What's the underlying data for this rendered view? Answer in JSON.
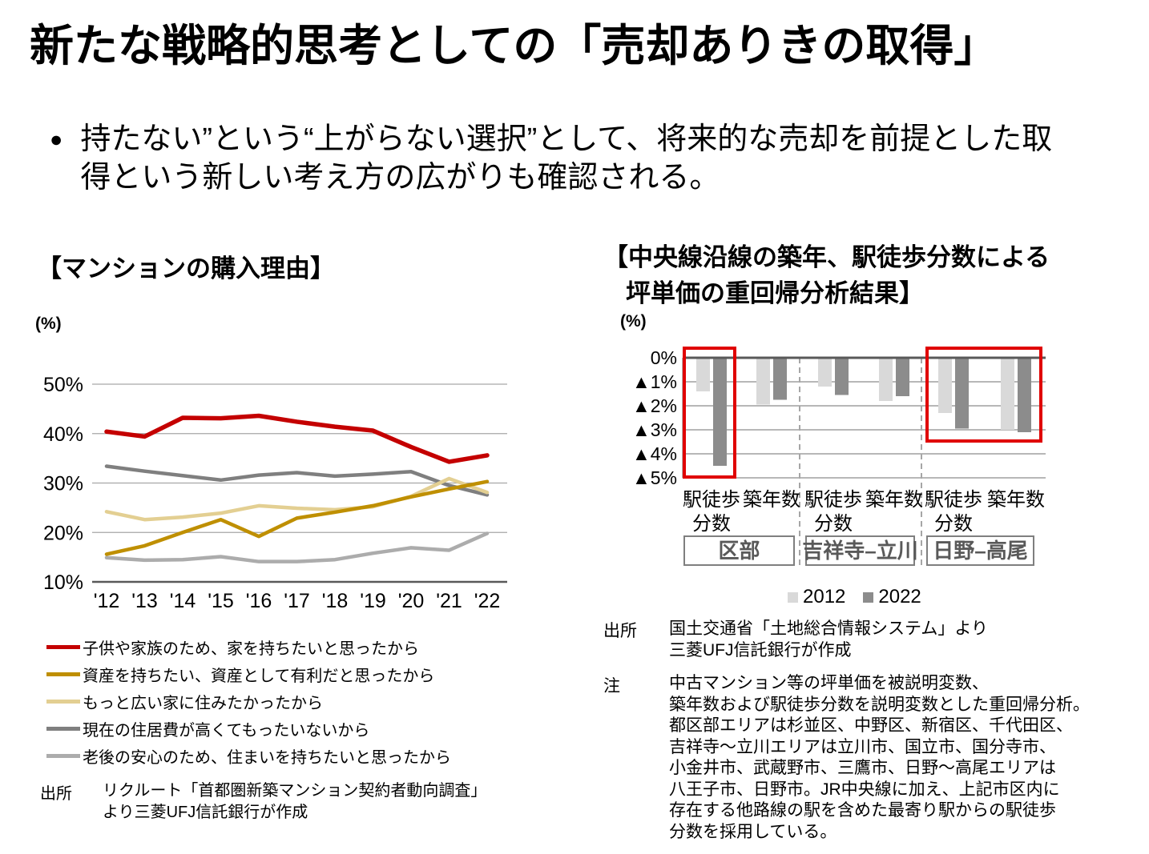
{
  "title": "新たな戦略的思考としての「売却ありきの取得」",
  "bullet_text": "持たない”という“上がらない選択”として、将来的な売却を前提とした取\n得という新しい考え方の広がりも確認される。",
  "colors": {
    "accent_red": "#c40000",
    "highlight_box_red": "#e00000",
    "axis_dark_gray": "#595959",
    "grid_gray": "#a6a6a6"
  },
  "chart_data": [
    {
      "type": "line",
      "title": "【マンションの購入理由】",
      "unit": "(%)",
      "x": [
        "'12",
        "'13",
        "'14",
        "'15",
        "'16",
        "'17",
        "'18",
        "'19",
        "'20",
        "'21",
        "'22"
      ],
      "ylim": [
        10,
        50
      ],
      "yticks": [
        "50%",
        "40%",
        "30%",
        "20%",
        "10%"
      ],
      "grid": true,
      "legend_position": "bottom-left",
      "series": [
        {
          "name": "子供や家族のため、家を持ちたいと思ったから",
          "color": "#c40000",
          "values": [
            40.4,
            39.4,
            43.2,
            43.1,
            43.6,
            42.4,
            41.4,
            40.6,
            37.3,
            34.3,
            35.6
          ]
        },
        {
          "name": "資産を持ちたい、資産として有利だと思ったから",
          "color": "#bf8f00",
          "values": [
            15.6,
            17.3,
            20.0,
            22.6,
            19.2,
            22.9,
            24.1,
            25.4,
            27.2,
            28.8,
            30.3
          ]
        },
        {
          "name": "もっと広い家に住みたかったから",
          "color": "#e3cf92",
          "values": [
            24.2,
            22.6,
            23.1,
            23.9,
            25.4,
            24.9,
            24.6,
            25.2,
            27.3,
            30.9,
            28.1
          ]
        },
        {
          "name": "現在の住居費が高くてもったいないから",
          "color": "#7f7f7f",
          "values": [
            33.4,
            32.4,
            31.5,
            30.6,
            31.6,
            32.1,
            31.4,
            31.8,
            32.3,
            29.5,
            27.6
          ]
        },
        {
          "name": "老後の安心のため、住まいを持ちたいと思ったから",
          "color": "#acacac",
          "values": [
            14.9,
            14.4,
            14.5,
            15.1,
            14.1,
            14.1,
            14.5,
            15.8,
            16.9,
            16.4,
            19.8
          ]
        }
      ],
      "source_label": "出所",
      "source_text": "リクルート「首都圏新築マンション契約者動向調査」\nより三菱UFJ信託銀行が作成"
    },
    {
      "type": "bar",
      "title_line1": "【中央線沿線の築年、駅徒歩分数による",
      "title_line2": "坪単価の重回帰分析結果】",
      "unit": "(%)",
      "ylim": [
        -5,
        0
      ],
      "yticks": [
        "0%",
        "▲1%",
        "▲2%",
        "▲3%",
        "▲4%",
        "▲5%"
      ],
      "categories": [
        [
          "駅徒歩",
          "分数"
        ],
        [
          "築年数"
        ],
        [
          "駅徒歩",
          "分数"
        ],
        [
          "築年数"
        ],
        [
          "駅徒歩",
          "分数"
        ],
        [
          "築年数"
        ]
      ],
      "group_labels": [
        "区部",
        "吉祥寺–立川",
        "日野–高尾"
      ],
      "series": [
        {
          "name": "2012",
          "color": "#d9d9d9",
          "values": [
            -1.4,
            -1.95,
            -1.2,
            -1.8,
            -2.3,
            -3.0
          ]
        },
        {
          "name": "2022",
          "color": "#8c8c8c",
          "values": [
            -4.5,
            -1.75,
            -1.55,
            -1.6,
            -2.95,
            -3.1
          ]
        }
      ],
      "highlight_color": "#e00000",
      "highlight_boxes": [
        {
          "group": "区部",
          "categories": [
            "駅徒歩分数"
          ]
        },
        {
          "group": "日野–高尾",
          "categories": [
            "駅徒歩分数",
            "築年数"
          ]
        }
      ],
      "source_label": "出所",
      "source_text": "国土交通省「土地総合情報システム」より\n三菱UFJ信託銀行が作成",
      "note_label": "注",
      "note_text": "中古マンション等の坪単価を被説明変数、\n築年数および駅徒歩分数を説明変数とした重回帰分析。\n都区部エリアは杉並区、中野区、新宿区、千代田区、\n吉祥寺～立川エリアは立川市、国立市、国分寺市、\n小金井市、武蔵野市、三鷹市、日野～高尾エリアは\n八王子市、日野市。JR中央線に加え、上記市区内に\n存在する他路線の駅を含めた最寄り駅からの駅徒歩\n分数を採用している。"
    }
  ]
}
